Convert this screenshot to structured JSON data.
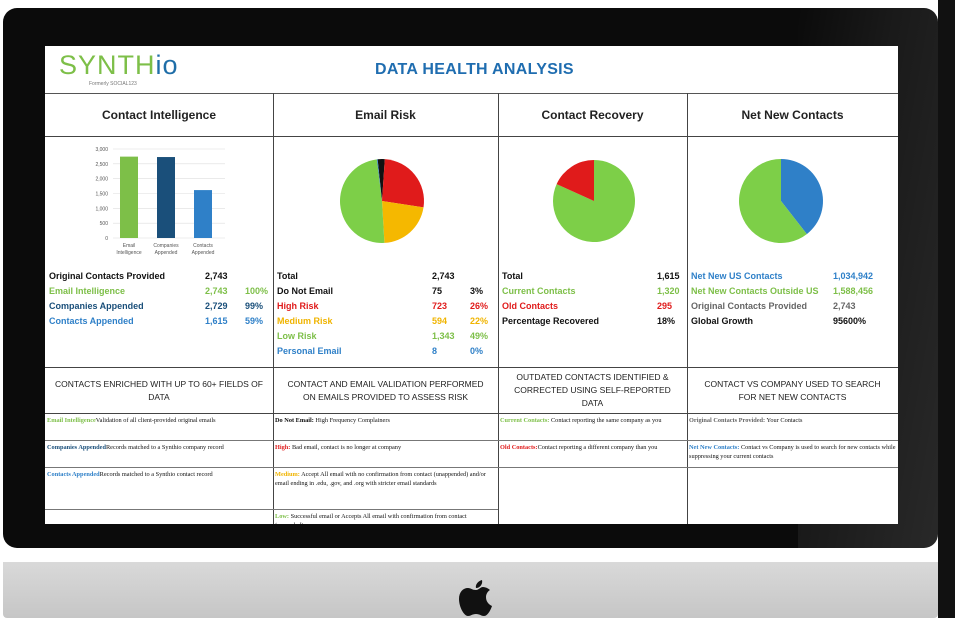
{
  "page_title": "DATA HEALTH ANALYSIS",
  "logo": {
    "main": "SYNTH",
    "suffix": "io",
    "subtitle": "Formerly SOCIAL123"
  },
  "columns": {
    "contact_intelligence": {
      "heading": "Contact Intelligence",
      "stats": [
        {
          "label": "Original Contacts Provided",
          "value": "2,743",
          "pct": ""
        },
        {
          "label": "Email Intelligence",
          "value": "2,743",
          "pct": "100%"
        },
        {
          "label": "Companies Appended",
          "value": "2,729",
          "pct": "99%"
        },
        {
          "label": "Contacts Appended",
          "value": "1,615",
          "pct": "59%"
        }
      ],
      "description": "CONTACTS ENRICHED WITH UP TO 60+ FIELDS OF DATA",
      "definitions": [
        {
          "term": "Email Intelligence",
          "text": "Validation of all client-provided original emails"
        },
        {
          "term": "Companies Appended",
          "text": "Records matched to a Synthio company record"
        },
        {
          "term": "Contacts Appended",
          "text": "Records matched to a Synthio contact record"
        }
      ]
    },
    "email_risk": {
      "heading": "Email Risk",
      "stats": [
        {
          "label": "Total",
          "value": "2,743",
          "pct": ""
        },
        {
          "label": "Do Not Email",
          "value": "75",
          "pct": "3%"
        },
        {
          "label": "High Risk",
          "value": "723",
          "pct": "26%"
        },
        {
          "label": "Medium Risk",
          "value": "594",
          "pct": "22%"
        },
        {
          "label": "Low Risk",
          "value": "1,343",
          "pct": "49%"
        },
        {
          "label": "Personal Email",
          "value": "8",
          "pct": "0%"
        }
      ],
      "description": "CONTACT AND EMAIL VALIDATION PERFORMED ON EMAILS PROVIDED TO ASSESS RISK",
      "definitions": [
        {
          "term": "Do Not Email:",
          "text": " High Frequency Complainers"
        },
        {
          "term": "High:",
          "text": " Bad email, contact is no longer at company"
        },
        {
          "term": "Medium:",
          "text": " Accept All email with no confirmation from contact (unappended) and/or email ending in .edu, .gov, and .org with stricter email standards"
        },
        {
          "term": "Low:",
          "text": " Successful email or Accepts All email with confirmation from contact (appended)"
        }
      ]
    },
    "contact_recovery": {
      "heading": "Contact Recovery",
      "stats": [
        {
          "label": "Total",
          "value": "1,615",
          "pct": ""
        },
        {
          "label": "Current Contacts",
          "value": "1,320",
          "pct": ""
        },
        {
          "label": "Old Contacts",
          "value": "295",
          "pct": ""
        },
        {
          "label": "Percentage Recovered",
          "value": "18%",
          "pct": ""
        }
      ],
      "description": "OUTDATED CONTACTS IDENTIFIED & CORRECTED USING SELF-REPORTED DATA",
      "definitions": [
        {
          "term": "Current Contacts:",
          "text": " Contact reporting the same company as you"
        },
        {
          "term": "Old Contacts:",
          "text": "Contact reporting a different company than you"
        }
      ]
    },
    "net_new_contacts": {
      "heading": "Net New Contacts",
      "stats": [
        {
          "label": "Net New US Contacts",
          "value": "1,034,942",
          "pct": ""
        },
        {
          "label": "Net New Contacts Outside US",
          "value": "1,588,456",
          "pct": ""
        },
        {
          "label": "Original Contacts Provided",
          "value": "2,743",
          "pct": ""
        },
        {
          "label": "Global Growth",
          "value": "95600%",
          "pct": ""
        }
      ],
      "description": "CONTACT VS COMPANY USED TO SEARCH FOR NET NEW CONTACTS",
      "definitions": [
        {
          "term": "Original Contacts Provided:",
          "text": " Your Contacts"
        },
        {
          "term": "Net New Contacts:",
          "text": " Contact vs Company is used to search for new contacts while suppressing your current contacts"
        }
      ]
    }
  },
  "chart_data": [
    {
      "type": "bar",
      "categories": [
        "Email Intelligence",
        "Companies Appended",
        "Contacts Appended"
      ],
      "values": [
        2743,
        2729,
        1615
      ],
      "yticks": [
        "3,000",
        "2,500",
        "2,000",
        "1,500",
        "1,000",
        "500",
        "0"
      ],
      "ylim": [
        0,
        3000
      ],
      "colors": [
        "#7dbf48",
        "#1a4f7a",
        "#2f80c8"
      ]
    },
    {
      "type": "pie",
      "labels": [
        "Do Not Email",
        "High Risk",
        "Medium Risk",
        "Low Risk",
        "Personal Email"
      ],
      "values": [
        75,
        723,
        594,
        1343,
        8
      ],
      "colors": [
        "#111111",
        "#e01b1b",
        "#f5b800",
        "#7dcf48",
        "#2f80c8"
      ]
    },
    {
      "type": "pie",
      "labels": [
        "Current Contacts",
        "Old Contacts"
      ],
      "values": [
        1320,
        295
      ],
      "colors": [
        "#7dcf48",
        "#e01b1b"
      ]
    },
    {
      "type": "pie",
      "labels": [
        "Net New US Contacts",
        "Net New Contacts Outside US"
      ],
      "values": [
        1034942,
        1588456
      ],
      "colors": [
        "#2f80c8",
        "#7dcf48"
      ]
    }
  ]
}
